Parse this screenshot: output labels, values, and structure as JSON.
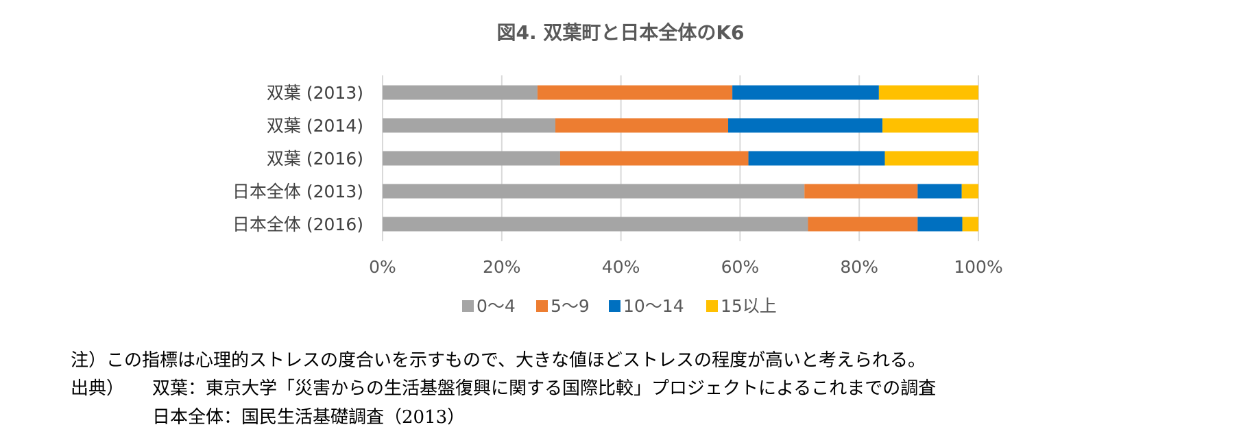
{
  "chart_data": {
    "type": "bar",
    "orientation": "horizontal",
    "stacked": "percent",
    "title": "図4. 双葉町と日本全体のK6",
    "categories": [
      "双葉 (2013)",
      "双葉 (2014)",
      "双葉 (2016)",
      "日本全体 (2013)",
      "日本全体 (2016)"
    ],
    "series": [
      {
        "name": "0〜4",
        "color": "#A5A5A5",
        "values": [
          26.0,
          29.0,
          29.8,
          70.8,
          71.4
        ]
      },
      {
        "name": "5〜9",
        "color": "#ED7D31",
        "values": [
          32.7,
          29.0,
          31.6,
          19.0,
          18.4
        ]
      },
      {
        "name": "10〜14",
        "color": "#0070C0",
        "values": [
          24.6,
          25.9,
          22.9,
          7.4,
          7.5
        ]
      },
      {
        "name": "15以上",
        "color": "#FFC000",
        "values": [
          16.7,
          16.1,
          15.7,
          2.8,
          2.7
        ]
      }
    ],
    "xlim": [
      0,
      100
    ],
    "xticks": [
      "0%",
      "20%",
      "40%",
      "60%",
      "80%",
      "100%"
    ],
    "grid": true,
    "legend_position": "bottom"
  },
  "notes": {
    "note": "注）この指標は心理的ストレスの度合いを示すもので、大きな値ほどストレスの程度が高いと考えられる。",
    "source_prefix": "出典）",
    "source_1": "双葉：東京大学「災害からの生活基盤復興に関する国際比較」プロジェクトによるこれまでの調査",
    "source_2": "日本全体：国民生活基礎調査（2013）"
  }
}
